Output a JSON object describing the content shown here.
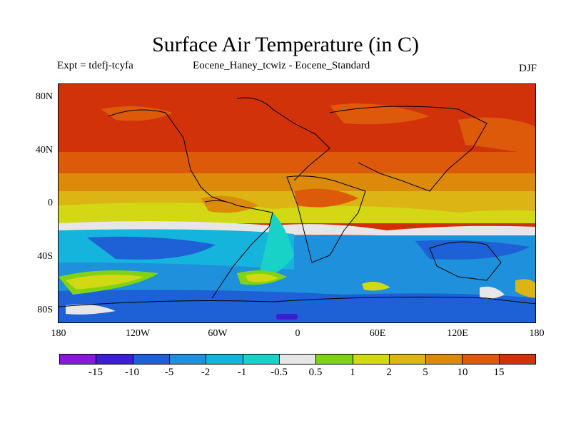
{
  "header": {
    "title": "Surface Air Temperature (in C)",
    "expt": "Expt = tdefj-tcyfa",
    "comparison": "Eocene_Haney_tcwiz - Eocene_Standard",
    "season": "DJF"
  },
  "axes": {
    "lat_labels": [
      "80N",
      "40N",
      "0",
      "40S",
      "80S"
    ],
    "lon_labels": [
      "180",
      "120W",
      "60W",
      "0",
      "60E",
      "120E",
      "180"
    ]
  },
  "colorbar": {
    "colors": [
      "#8a18d8",
      "#3c1ed2",
      "#1e60d6",
      "#1e90dc",
      "#14b4dc",
      "#18d2c8",
      "#e6e6e6",
      "#80d214",
      "#d2d814",
      "#dcb414",
      "#dc8a0a",
      "#dc5a0a",
      "#d2320a"
    ],
    "labels": [
      "-15",
      "-10",
      "-5",
      "-2",
      "-1",
      "-0.5",
      "0.5",
      "1",
      "2",
      "5",
      "10",
      "15"
    ]
  }
}
